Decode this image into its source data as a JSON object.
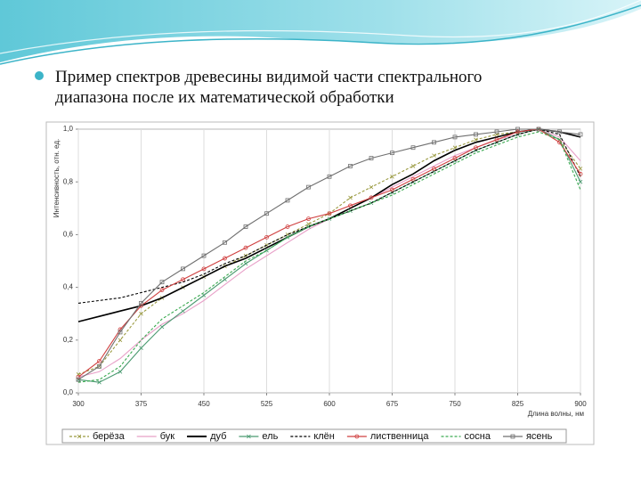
{
  "slide": {
    "bullet_lines": [
      "Пример спектров древесины видимой части спектрального",
      "диапазона после их математической обработки"
    ]
  },
  "chart_data": {
    "type": "line",
    "y_label": "Интенсивность, отн. ед.",
    "x_label": "Длина волны, нм",
    "x": [
      300,
      325,
      350,
      375,
      400,
      425,
      450,
      475,
      500,
      525,
      550,
      575,
      600,
      625,
      650,
      675,
      700,
      725,
      750,
      775,
      800,
      825,
      850,
      875,
      900
    ],
    "xlim": [
      300,
      900
    ],
    "xticks": [
      300,
      375,
      450,
      525,
      600,
      675,
      750,
      825,
      900
    ],
    "ylim": [
      0,
      1
    ],
    "yticks": [
      {
        "value": 0,
        "label": "0,0"
      },
      {
        "value": 0.2,
        "label": "0,2"
      },
      {
        "value": 0.4,
        "label": "0,4"
      },
      {
        "value": 0.6,
        "label": "0,6"
      },
      {
        "value": 0.8,
        "label": "0,8"
      },
      {
        "value": 1,
        "label": "1,0"
      }
    ],
    "grid": "x",
    "legend": "bottom",
    "series": [
      {
        "name": "берёза",
        "color": "#9a9a40",
        "dash": true,
        "marker": "x",
        "values": [
          0.07,
          0.1,
          0.2,
          0.3,
          0.36,
          0.4,
          0.44,
          0.48,
          0.52,
          0.56,
          0.6,
          0.64,
          0.68,
          0.74,
          0.78,
          0.82,
          0.86,
          0.9,
          0.93,
          0.96,
          0.98,
          0.99,
          1.0,
          0.96,
          0.85
        ]
      },
      {
        "name": "бук",
        "color": "#e8a0c8",
        "dash": false,
        "marker": "none",
        "values": [
          0.06,
          0.08,
          0.13,
          0.2,
          0.26,
          0.3,
          0.35,
          0.41,
          0.47,
          0.52,
          0.57,
          0.62,
          0.66,
          0.7,
          0.74,
          0.78,
          0.82,
          0.86,
          0.9,
          0.93,
          0.96,
          0.98,
          1.0,
          0.97,
          0.88
        ]
      },
      {
        "name": "дуб",
        "color": "#000000",
        "dash": false,
        "marker": "none",
        "values": [
          0.27,
          0.29,
          0.31,
          0.33,
          0.36,
          0.4,
          0.44,
          0.48,
          0.51,
          0.55,
          0.59,
          0.63,
          0.66,
          0.7,
          0.74,
          0.79,
          0.83,
          0.88,
          0.92,
          0.95,
          0.97,
          0.99,
          1.0,
          0.99,
          0.97
        ]
      },
      {
        "name": "ель",
        "color": "#4a9a70",
        "dash": false,
        "marker": "x",
        "values": [
          0.05,
          0.04,
          0.08,
          0.17,
          0.25,
          0.31,
          0.37,
          0.43,
          0.49,
          0.54,
          0.59,
          0.63,
          0.66,
          0.69,
          0.72,
          0.76,
          0.8,
          0.84,
          0.88,
          0.92,
          0.95,
          0.98,
          1.0,
          0.96,
          0.8
        ]
      },
      {
        "name": "клён",
        "color": "#000000",
        "dash": true,
        "marker": "none",
        "values": [
          0.34,
          0.35,
          0.36,
          0.38,
          0.4,
          0.42,
          0.45,
          0.49,
          0.52,
          0.56,
          0.6,
          0.63,
          0.66,
          0.69,
          0.72,
          0.76,
          0.8,
          0.84,
          0.88,
          0.92,
          0.95,
          0.98,
          1.0,
          0.98,
          0.82
        ]
      },
      {
        "name": "лиственница",
        "color": "#d04040",
        "dash": false,
        "marker": "circle",
        "values": [
          0.06,
          0.12,
          0.24,
          0.33,
          0.39,
          0.43,
          0.47,
          0.51,
          0.55,
          0.59,
          0.63,
          0.66,
          0.68,
          0.71,
          0.74,
          0.77,
          0.81,
          0.85,
          0.89,
          0.93,
          0.96,
          0.99,
          1.0,
          0.95,
          0.83
        ]
      },
      {
        "name": "сосна",
        "color": "#3aaa50",
        "dash": true,
        "marker": "none",
        "values": [
          0.04,
          0.05,
          0.1,
          0.2,
          0.28,
          0.33,
          0.38,
          0.44,
          0.5,
          0.54,
          0.59,
          0.63,
          0.66,
          0.69,
          0.72,
          0.75,
          0.79,
          0.83,
          0.87,
          0.91,
          0.94,
          0.97,
          0.99,
          0.96,
          0.77
        ]
      },
      {
        "name": "ясень",
        "color": "#707070",
        "dash": false,
        "marker": "square",
        "values": [
          0.05,
          0.1,
          0.23,
          0.34,
          0.42,
          0.47,
          0.52,
          0.57,
          0.63,
          0.68,
          0.73,
          0.78,
          0.82,
          0.86,
          0.89,
          0.91,
          0.93,
          0.95,
          0.97,
          0.98,
          0.99,
          1.0,
          1.0,
          0.99,
          0.98
        ]
      }
    ]
  }
}
